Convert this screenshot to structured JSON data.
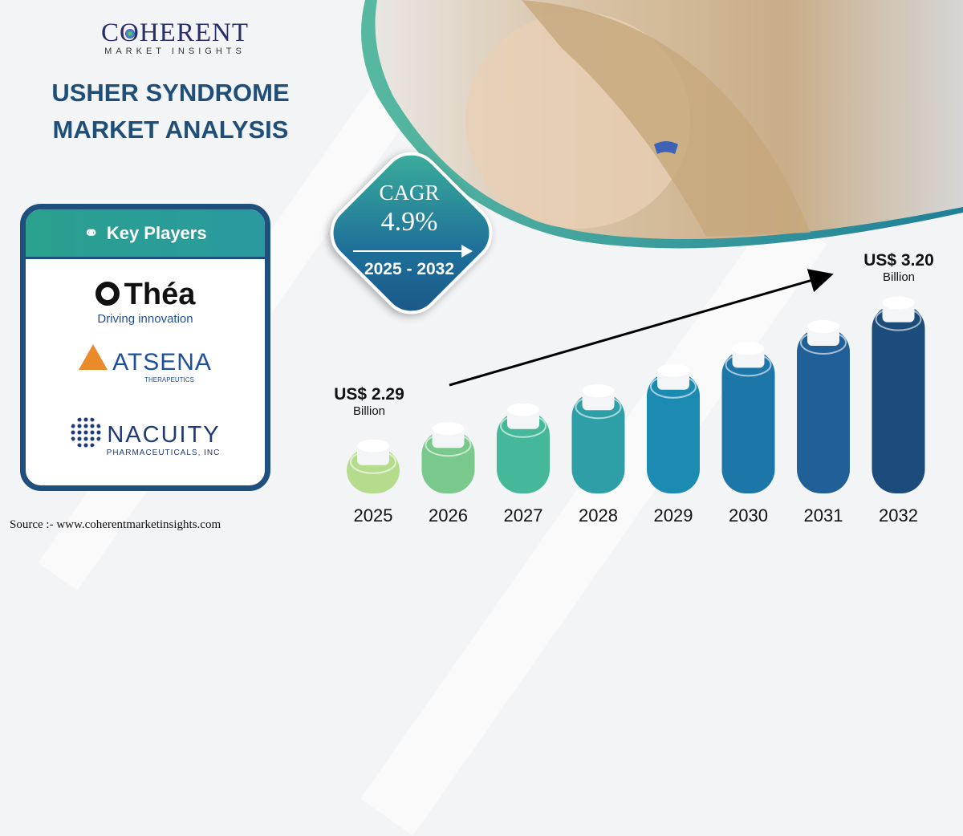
{
  "logo": {
    "name": "COHERENT",
    "tagline": "MARKET INSIGHTS"
  },
  "title": {
    "line1": "USHER SYNDROME",
    "line2": "MARKET ANALYSIS"
  },
  "key_players": {
    "heading": "Key Players",
    "players": [
      {
        "name": "Théa",
        "tagline": "Driving innovation"
      },
      {
        "name": "ATSENA",
        "tagline": "THERAPEUTICS"
      },
      {
        "name": "NACUITY",
        "tagline": "PHARMACEUTICALS, INC"
      }
    ]
  },
  "cagr": {
    "label": "CAGR",
    "value": "4.9%",
    "period": "2025 - 2032"
  },
  "source": "Source :- www.coherentmarketinsights.com",
  "colors": {
    "title": "#1f4e79",
    "teal": "#2aa08e",
    "navy": "#1e4f7d"
  },
  "chart_data": {
    "type": "bar",
    "categories": [
      "2025",
      "2026",
      "2027",
      "2028",
      "2029",
      "2030",
      "2031",
      "2032"
    ],
    "values": [
      2.29,
      2.4,
      2.52,
      2.64,
      2.77,
      2.91,
      3.05,
      3.2
    ],
    "ylim": [
      2.1,
      3.3
    ],
    "start_label": {
      "value": "US$ 2.29",
      "unit": "Billion"
    },
    "end_label": {
      "value": "US$ 3.20",
      "unit": "Billion"
    },
    "bar_colors": [
      "#b5dc8c",
      "#79c98c",
      "#46b89a",
      "#2e9fa6",
      "#1c8bb1",
      "#1d76a8",
      "#215f98",
      "#1b4c7c"
    ]
  }
}
